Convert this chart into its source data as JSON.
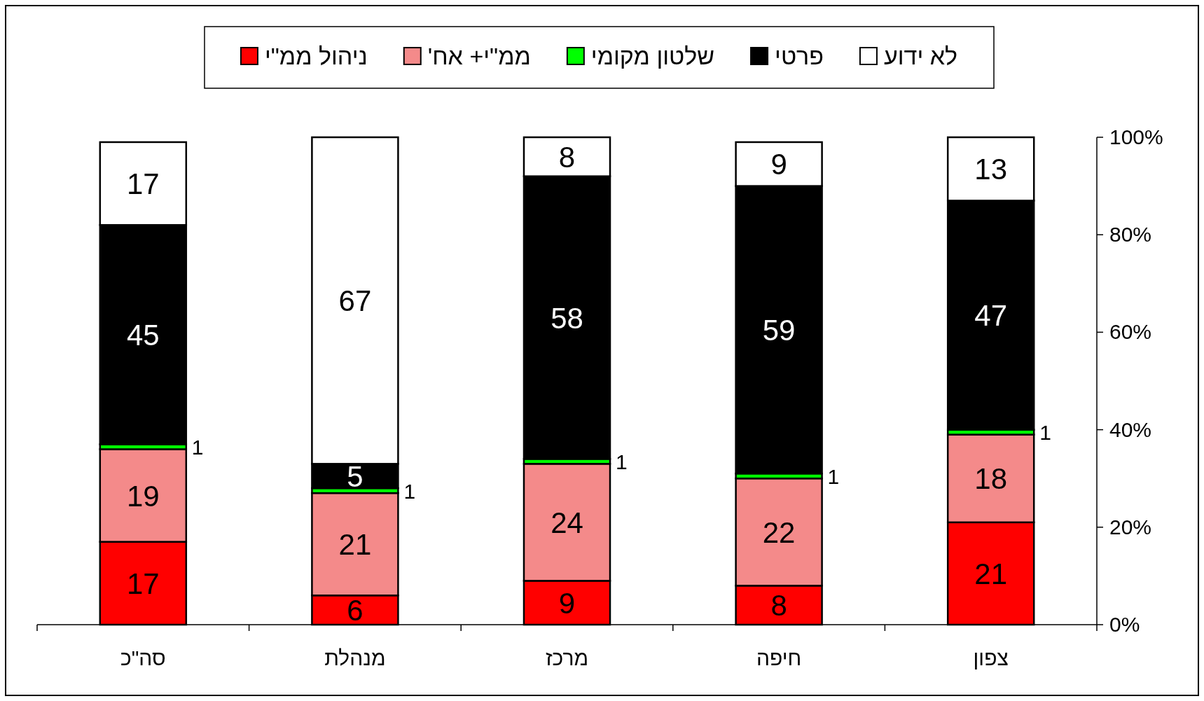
{
  "chart_data": {
    "type": "bar",
    "stacked": true,
    "categories": [
      "סה\"כ",
      "מנהלת",
      "מרכז",
      "חיפה",
      "צפון"
    ],
    "series": [
      {
        "name": "ניהול ממ\"י",
        "color": "#ff0000",
        "values": [
          17,
          6,
          9,
          8,
          21
        ]
      },
      {
        "name": "ממ\"י+ אח'",
        "color": "#f48a8a",
        "values": [
          19,
          21,
          24,
          22,
          18
        ]
      },
      {
        "name": "שלטון מקומי",
        "color": "#00ff00",
        "values": [
          1,
          1,
          1,
          1,
          1
        ]
      },
      {
        "name": "פרטי",
        "color": "#000000",
        "values": [
          45,
          5,
          58,
          59,
          47
        ]
      },
      {
        "name": "לא ידוע",
        "color": "#ffffff",
        "values": [
          17,
          67,
          8,
          9,
          13
        ]
      }
    ],
    "ylim": [
      0,
      100
    ],
    "yticks": [
      {
        "value": 0,
        "label": "0%"
      },
      {
        "value": 20,
        "label": "20%"
      },
      {
        "value": 40,
        "label": "40%"
      },
      {
        "value": 60,
        "label": "60%"
      },
      {
        "value": 80,
        "label": "80%"
      },
      {
        "value": 100,
        "label": "100%"
      }
    ],
    "data_labels": true,
    "legend": "top",
    "grid": false
  }
}
